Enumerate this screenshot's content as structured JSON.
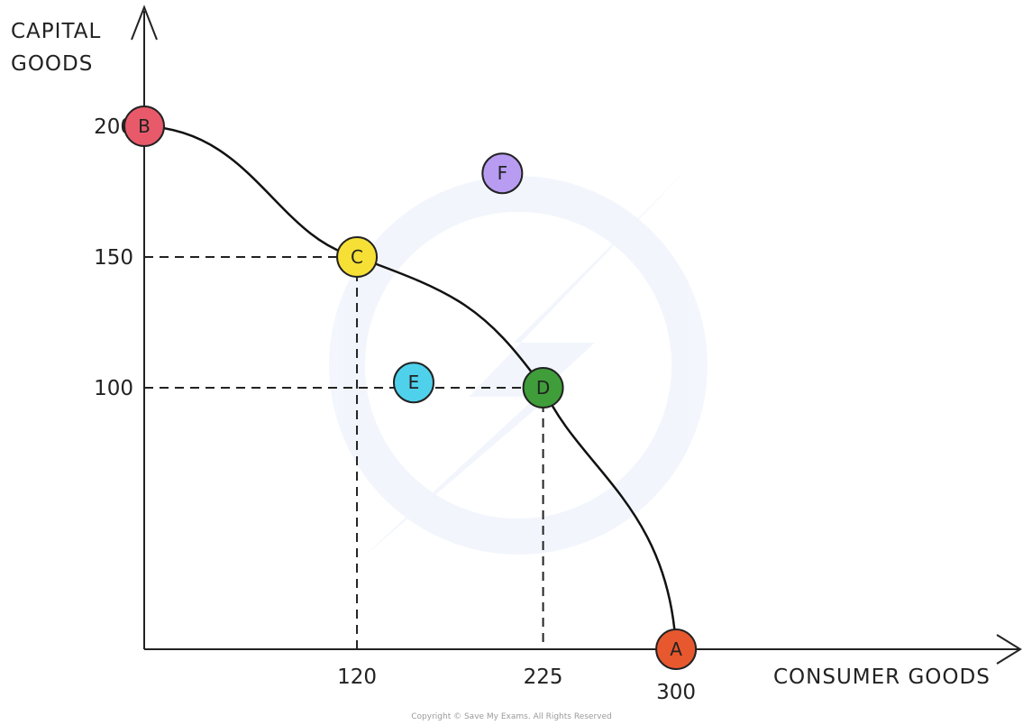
{
  "chart_data": {
    "type": "line",
    "y_axis_label_lines": [
      "CAPITAL",
      "GOODS"
    ],
    "x_axis_label": "CONSUMER GOODS",
    "x_ticks": [
      "120",
      "225",
      "300"
    ],
    "y_ticks": [
      "200",
      "150",
      "100"
    ],
    "xlim": [
      0,
      400
    ],
    "ylim": [
      0,
      225
    ],
    "ppf_curve": [
      {
        "x": 0,
        "y": 200
      },
      {
        "x": 120,
        "y": 150
      },
      {
        "x": 225,
        "y": 100
      },
      {
        "x": 300,
        "y": 0
      }
    ],
    "points": [
      {
        "label": "A",
        "x": 300,
        "y": 0,
        "color": "#e8582e"
      },
      {
        "label": "B",
        "x": 0,
        "y": 200,
        "color": "#e85a6a"
      },
      {
        "label": "C",
        "x": 120,
        "y": 150,
        "color": "#f7e035"
      },
      {
        "label": "D",
        "x": 225,
        "y": 100,
        "color": "#3f9e3a"
      },
      {
        "label": "E",
        "x": 152,
        "y": 102,
        "color": "#4fd1ec"
      },
      {
        "label": "F",
        "x": 202,
        "y": 182,
        "color": "#b79cf2"
      }
    ],
    "guide_lines": [
      {
        "x": 120,
        "y": 150
      },
      {
        "x": 225,
        "y": 100
      }
    ],
    "grid": false
  },
  "copyright": "Copyright © Save My Exams. All Rights Reserved"
}
